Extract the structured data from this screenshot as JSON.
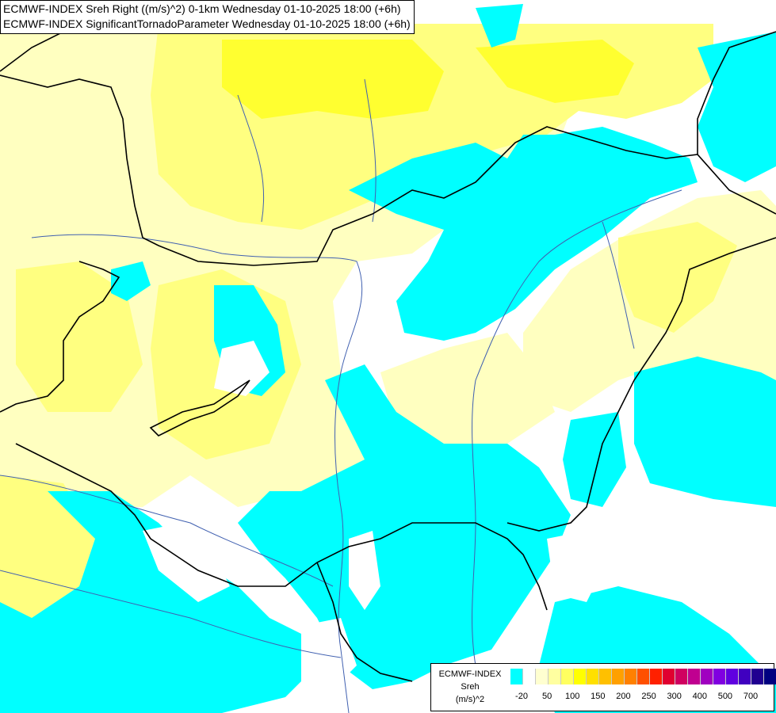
{
  "title": {
    "line1": "ECMWF-INDEX Sreh Right ((m/s)^2) 0-1km Wednesday 01-10-2025 18:00 (+6h)",
    "line2": "ECMWF-INDEX SignificantTornadoParameter Wednesday 01-10-2025 18:00 (+6h)"
  },
  "legend": {
    "source": "ECMWF-INDEX",
    "variable": "Sreh",
    "unit": "(m/s)^2",
    "colors": [
      "#00ffff",
      "#ffffff",
      "#ffffd0",
      "#ffffa0",
      "#ffff60",
      "#ffff00",
      "#ffe000",
      "#ffc000",
      "#ffa000",
      "#ff8000",
      "#ff5000",
      "#ff2000",
      "#e00030",
      "#d00060",
      "#c00090",
      "#a000c0",
      "#8000e0",
      "#6000e0",
      "#4000c0",
      "#200090",
      "#000080"
    ],
    "ticks": [
      "-20",
      "50",
      "100",
      "150",
      "200",
      "250",
      "300",
      "400",
      "500",
      "700"
    ]
  },
  "map": {
    "colors": {
      "sea_cyan": "#00ffff",
      "neutral": "#ffffff",
      "light_yellow": "#ffffc0",
      "yellow": "#ffff80",
      "strong_yellow": "#ffff30",
      "border": "#000000",
      "river": "#4060b0"
    }
  }
}
